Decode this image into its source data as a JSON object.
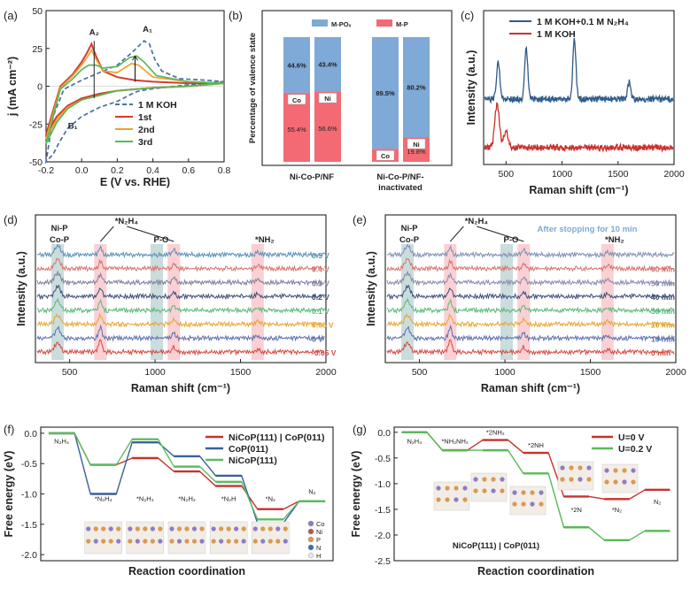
{
  "chart_data": [
    {
      "id": "a",
      "type": "line",
      "panel_label": "(a)",
      "xlabel": "E (V vs. RHE)",
      "ylabel": "j (mA cm⁻²)",
      "xlim": [
        -0.2,
        0.8
      ],
      "ylim": [
        -50,
        50
      ],
      "xticks": [
        -0.2,
        0.0,
        0.2,
        0.4,
        0.6,
        0.8
      ],
      "yticks": [
        -50,
        -25,
        0,
        25,
        50
      ],
      "xtick_labels": [
        "-0.2",
        "0.0",
        "0.2",
        "0.4",
        "0.6",
        "0.8"
      ],
      "ytick_labels": [
        "-50",
        "-25",
        "0",
        "25",
        "50"
      ],
      "annotations": [
        "A₁",
        "A₂",
        "B₁"
      ],
      "series": [
        {
          "name": "1 M KOH",
          "color": "#4a6fa5",
          "dashed": true,
          "x": [
            0.8,
            0.6,
            0.45,
            0.38,
            0.33,
            0.3,
            0.25,
            0.2,
            0.1,
            0.0,
            -0.08,
            -0.13,
            -0.16,
            -0.2,
            -0.16,
            -0.1,
            0.0,
            0.1,
            0.2,
            0.28,
            0.35,
            0.38,
            0.41,
            0.45,
            0.55,
            0.7,
            0.8
          ],
          "y": [
            3,
            1,
            -1,
            -2,
            -3,
            -4,
            -7,
            -10,
            -14,
            -20,
            -28,
            -38,
            -45,
            -50,
            -20,
            -2,
            4,
            9,
            14,
            22,
            30,
            28,
            18,
            10,
            5,
            4,
            3
          ]
        },
        {
          "name": "1st",
          "color": "#d63b2f",
          "x": [
            0.8,
            0.6,
            0.4,
            0.3,
            0.2,
            0.1,
            0.0,
            -0.08,
            -0.14,
            -0.2,
            -0.12,
            -0.05,
            0.0,
            0.03,
            0.055,
            0.08,
            0.12,
            0.2,
            0.3,
            0.4,
            0.6,
            0.8
          ],
          "y": [
            2,
            0,
            -1,
            -2,
            -3,
            -5,
            -8,
            -13,
            -20,
            -32,
            0,
            8,
            16,
            22,
            28,
            20,
            10,
            6,
            4,
            3,
            2,
            2
          ]
        },
        {
          "name": "2nd",
          "color": "#f0a030",
          "x": [
            0.8,
            0.6,
            0.4,
            0.3,
            0.2,
            0.1,
            0.0,
            -0.08,
            -0.14,
            -0.2,
            -0.12,
            -0.05,
            0.0,
            0.03,
            0.055,
            0.08,
            0.12,
            0.2,
            0.28,
            0.32,
            0.4,
            0.6,
            0.8
          ],
          "y": [
            2,
            0,
            -1,
            -2,
            -3,
            -6,
            -9,
            -14,
            -22,
            -35,
            -1,
            7,
            14,
            19,
            24,
            18,
            10,
            9,
            15,
            14,
            6,
            3,
            2
          ]
        },
        {
          "name": "3rd",
          "color": "#58b95a",
          "x": [
            0.8,
            0.6,
            0.4,
            0.3,
            0.2,
            0.1,
            0.0,
            -0.08,
            -0.14,
            -0.2,
            -0.12,
            -0.05,
            0.0,
            0.04,
            0.08,
            0.12,
            0.2,
            0.27,
            0.31,
            0.35,
            0.42,
            0.6,
            0.8
          ],
          "y": [
            2,
            0,
            -1,
            -2,
            -3,
            -6,
            -9,
            -15,
            -24,
            -38,
            -2,
            5,
            11,
            14,
            14,
            12,
            13,
            19,
            20,
            16,
            7,
            3,
            2
          ]
        }
      ]
    },
    {
      "id": "b",
      "type": "bar",
      "panel_label": "(b)",
      "stacked": true,
      "ylabel": "Percentage of valence state",
      "legend": [
        "M-POₓ",
        "M-P"
      ],
      "colors": {
        "M-P": "#f46a74",
        "M-POₓ": "#7fa9d6"
      },
      "groups": [
        "Ni-Co-P/NF",
        "Ni-Co-P/NF-\ninactivated"
      ],
      "bars": [
        {
          "group": 0,
          "element": "Co",
          "M-P": 55.4,
          "M-POx": 44.6,
          "mp_label": "55.4%",
          "mpox_label": "44.6%"
        },
        {
          "group": 0,
          "element": "Ni",
          "M-P": 56.6,
          "M-POx": 43.4,
          "mp_label": "56.6%",
          "mpox_label": "43.4%"
        },
        {
          "group": 1,
          "element": "Co",
          "M-P": 10.5,
          "M-POx": 89.5,
          "mp_label": "10.5%",
          "mpox_label": "89.5%"
        },
        {
          "group": 1,
          "element": "Ni",
          "M-P": 19.8,
          "M-POx": 80.2,
          "mp_label": "19.8%",
          "mpox_label": "80.2%"
        }
      ]
    },
    {
      "id": "c",
      "type": "line",
      "panel_label": "(c)",
      "xlabel": "Raman shift (cm⁻¹)",
      "ylabel": "Intensity (a.u.)",
      "xlim": [
        300,
        2000
      ],
      "xticks": [
        500,
        1000,
        1500,
        2000
      ],
      "series": [
        {
          "name": "1 M KOH+0.1 M N₂H₄",
          "color": "#2f5b8a",
          "peaks": [
            [
              430,
              0.55
            ],
            [
              680,
              0.75
            ],
            [
              1110,
              0.9
            ],
            [
              1600,
              0.25
            ]
          ]
        },
        {
          "name": "1 M KOH",
          "color": "#c8312d",
          "peaks": [
            [
              420,
              0.65
            ],
            [
              500,
              0.25
            ]
          ]
        }
      ]
    },
    {
      "id": "d",
      "type": "line",
      "panel_label": "(d)",
      "xlabel": "Raman shift (cm⁻¹)",
      "ylabel": "Intensity (a.u.)",
      "xlim": [
        300,
        2000
      ],
      "xticks": [
        500,
        1000,
        1500,
        2000
      ],
      "bands": [
        {
          "label": "Ni-P\nCo-P",
          "x": 430,
          "color": "#9fbfc0"
        },
        {
          "label": "*N₂H₄",
          "x": 680,
          "color": "#f4a9b0"
        },
        {
          "label": "P-O",
          "x": 1010,
          "color": "#9fbfc0"
        },
        {
          "label": "",
          "x": 1110,
          "color": "#f4a9b0"
        },
        {
          "label": "*NH₂",
          "x": 1600,
          "color": "#f4a9b0"
        }
      ],
      "traces": [
        {
          "label": "0.5 V",
          "color": "#5a8fb8"
        },
        {
          "label": "0.4 V",
          "color": "#d5726a"
        },
        {
          "label": "0.3 V",
          "color": "#7e7e9a"
        },
        {
          "label": "0.2 V",
          "color": "#3d4f7a"
        },
        {
          "label": "0.1 V",
          "color": "#59b97a"
        },
        {
          "label": "0.05 V",
          "color": "#e6a630"
        },
        {
          "label": "0 V",
          "color": "#5d6fb0"
        },
        {
          "label": "-0.05 V",
          "color": "#d24a44"
        }
      ]
    },
    {
      "id": "e",
      "type": "line",
      "panel_label": "(e)",
      "xlabel": "Raman shift (cm⁻¹)",
      "ylabel": "Intensity (a.u.)",
      "xlim": [
        300,
        2000
      ],
      "xticks": [
        500,
        1000,
        1500,
        2000
      ],
      "annotation": "After stopping for 10 min",
      "bands": [
        {
          "label": "Ni-P\nCo-P",
          "x": 430,
          "color": "#9fbfc0"
        },
        {
          "label": "*N₂H₄",
          "x": 680,
          "color": "#f4a9b0"
        },
        {
          "label": "P-O",
          "x": 1010,
          "color": "#9fbfc0"
        },
        {
          "label": "",
          "x": 1110,
          "color": "#f4a9b0"
        },
        {
          "label": "*NH₂",
          "x": 1600,
          "color": "#f4a9b0"
        }
      ],
      "traces": [
        {
          "label": "",
          "color": "#7f8fb0"
        },
        {
          "label": "60 min",
          "color": "#d5726a"
        },
        {
          "label": "50 min",
          "color": "#8a8aa8"
        },
        {
          "label": "40 min",
          "color": "#3d4f7a"
        },
        {
          "label": "30 min",
          "color": "#59b97a"
        },
        {
          "label": "20 min",
          "color": "#e6a630"
        },
        {
          "label": "10 min",
          "color": "#5d6fb0"
        },
        {
          "label": "0 min",
          "color": "#d24a44"
        }
      ]
    },
    {
      "id": "f",
      "type": "line",
      "subtype": "energy-profile",
      "panel_label": "(f)",
      "xlabel": "Reaction coordination",
      "ylabel": "Free energy (eV)",
      "ylim": [
        -2.1,
        0.1
      ],
      "yticks": [
        0.0,
        -0.5,
        -1.0,
        -1.5,
        -2.0
      ],
      "ytick_labels": [
        "0.0",
        "-0.5",
        "-1.0",
        "-1.5",
        "-2.0"
      ],
      "steps": [
        "N₂H₄",
        "*N₂H₄",
        "*N₂H₃",
        "*N₂H₂",
        "*N₂H",
        "*N₂",
        "N₂"
      ],
      "atom_legend": [
        "Co",
        "Ni",
        "P",
        "N",
        "H"
      ],
      "series": [
        {
          "name": "NiCoP(111) | CoP(011)",
          "color": "#c8312d",
          "dashed": false,
          "values": [
            0.0,
            -0.52,
            -0.41,
            -0.63,
            -0.87,
            -1.25,
            -1.12
          ]
        },
        {
          "name": "CoP(011)",
          "color": "#3a5f9a",
          "dashed": false,
          "values": [
            0.0,
            -1.0,
            -0.15,
            -0.38,
            -0.7,
            -1.48,
            -1.12
          ]
        },
        {
          "name": "NiCoP(111)",
          "color": "#5bbd63",
          "dashed": false,
          "values": [
            0.0,
            -0.52,
            -0.1,
            -0.55,
            -0.8,
            -1.42,
            -1.12
          ]
        }
      ]
    },
    {
      "id": "g",
      "type": "line",
      "subtype": "energy-profile",
      "panel_label": "(g)",
      "xlabel": "Reaction coordination",
      "ylabel": "Free energy (eV)",
      "ylim": [
        -2.5,
        0.1
      ],
      "yticks": [
        0.0,
        -0.5,
        -1.0,
        -1.5,
        -2.0,
        -2.5
      ],
      "ytick_labels": [
        "0.0",
        "-0.5",
        "-1.0",
        "-1.5",
        "-2.0",
        "-2.5"
      ],
      "steps": [
        "N₂H₄",
        "*NH₂NH₂",
        "*2NH₂",
        "*2NH",
        "*2N",
        "*N₂",
        "N₂"
      ],
      "structure_label": "NiCoP(111) | CoP(011)",
      "series": [
        {
          "name": "U=0 V",
          "color": "#c8312d",
          "values": [
            0.0,
            -0.35,
            -0.15,
            -0.4,
            -1.25,
            -1.3,
            -1.12
          ]
        },
        {
          "name": "U=0.2 V",
          "color": "#58b95a",
          "values": [
            0.0,
            -0.35,
            -0.35,
            -0.8,
            -1.85,
            -2.1,
            -1.92
          ]
        }
      ]
    }
  ]
}
